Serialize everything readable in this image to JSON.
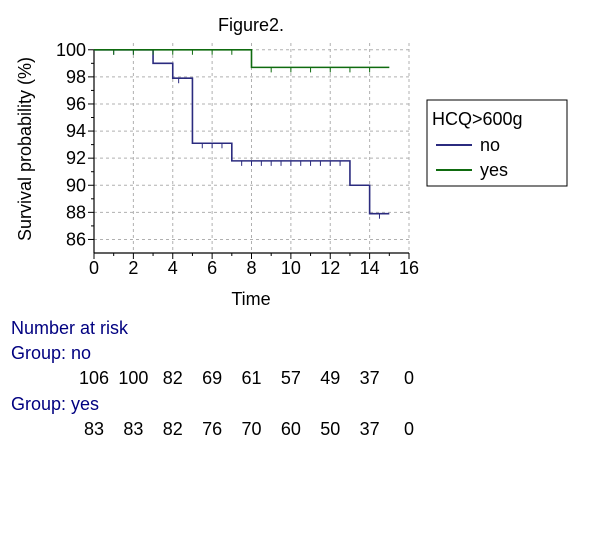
{
  "chart_data": {
    "type": "line",
    "title": "Figure2.",
    "xlabel": "Time",
    "ylabel": "Survival probability (%)",
    "xlim": [
      0,
      16
    ],
    "ylim": [
      85,
      100.5
    ],
    "x_ticks": [
      0,
      2,
      4,
      6,
      8,
      10,
      12,
      14,
      16
    ],
    "y_ticks": [
      86,
      88,
      90,
      92,
      94,
      96,
      98,
      100
    ],
    "grid": true,
    "legend_title": "HCQ>600g",
    "legend_position": "right",
    "series": [
      {
        "name": "no",
        "color": "#2b2b7f",
        "steps": [
          [
            0,
            100
          ],
          [
            3,
            99
          ],
          [
            4,
            97.9
          ],
          [
            5,
            93.1
          ],
          [
            7,
            91.8
          ],
          [
            13,
            90
          ],
          [
            14,
            87.9
          ],
          [
            15,
            87.9
          ]
        ],
        "censor_times": [
          1,
          2,
          4.3,
          5.5,
          6,
          6.5,
          7.5,
          8,
          8.5,
          9,
          9.5,
          10,
          10.5,
          11,
          11.5,
          12,
          12.5,
          14.5
        ]
      },
      {
        "name": "yes",
        "color": "#0f6b0f",
        "steps": [
          [
            0,
            100
          ],
          [
            8,
            98.7
          ],
          [
            15,
            98.7
          ]
        ],
        "censor_times": [
          1,
          2,
          3,
          4,
          5,
          6,
          7,
          9,
          10,
          11,
          12,
          13,
          14
        ]
      }
    ],
    "number_at_risk": {
      "header": "Number at risk",
      "times": [
        0,
        2,
        4,
        6,
        8,
        10,
        12,
        14,
        16
      ],
      "groups": [
        {
          "label": "Group: no",
          "counts": [
            "106",
            "100",
            "82",
            "69",
            "61",
            "57",
            "49",
            "37",
            "0"
          ]
        },
        {
          "label": "Group: yes",
          "counts": [
            "83",
            "83",
            "82",
            "76",
            "70",
            "60",
            "50",
            "37",
            "0"
          ]
        }
      ]
    }
  }
}
